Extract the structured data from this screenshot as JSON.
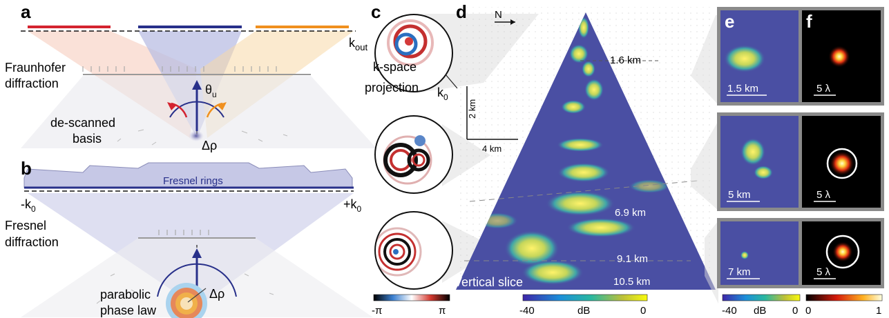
{
  "panels": {
    "a": "a",
    "b": "b",
    "c": "c",
    "d": "d",
    "e": "e",
    "f": "f"
  },
  "panel_a": {
    "k_out": "k",
    "k_out_sub": "out",
    "fraunhofer_1": "Fraunhofer",
    "fraunhofer_2": "diffraction",
    "theta": "θ",
    "theta_sub": "u",
    "descanned_1": "de-scanned",
    "descanned_2": "basis",
    "delta_rho": "Δρ"
  },
  "panel_b": {
    "fresnel_rings": "Fresnel rings",
    "minus_k0": "-k",
    "plus_k0": "+k",
    "k_sub": "0",
    "fresnel_1": "Fresnel",
    "fresnel_2": "diffraction",
    "parabolic_1": "parabolic",
    "parabolic_2": "phase law",
    "delta_rho": "Δρ"
  },
  "panel_c": {
    "kspace_1": "k-space",
    "kspace_2": "projection",
    "k0": "k",
    "k0_sub": "0",
    "colorbar_min": "-π",
    "colorbar_max": "π"
  },
  "panel_d": {
    "north": "N",
    "scale_vertical": "2 km",
    "scale_horizontal": "4 km",
    "depths": [
      "1.6 km",
      "6.9 km",
      "9.1 km",
      "10.5 km"
    ],
    "slice_label": "Vertical slice",
    "colorbar_min": "-40",
    "colorbar_unit": "dB",
    "colorbar_max": "0"
  },
  "panel_e": {
    "scales": [
      "1.5 km",
      "5 km",
      "7 km"
    ],
    "colorbar_min": "-40",
    "colorbar_unit": "dB",
    "colorbar_max": "0"
  },
  "panel_f": {
    "scales": [
      "5 λ",
      "5 λ",
      "5 λ"
    ],
    "colorbar_min": "0",
    "colorbar_max": "1"
  },
  "colors": {
    "red_segment": "#d4232f",
    "blue_segment": "#28308a",
    "orange_segment": "#f0901e",
    "beam_blue": "#b9bde3",
    "beam_red": "#f5c8b8",
    "beam_orange": "#f8d8a8",
    "image_background": "#4a4fa3"
  }
}
